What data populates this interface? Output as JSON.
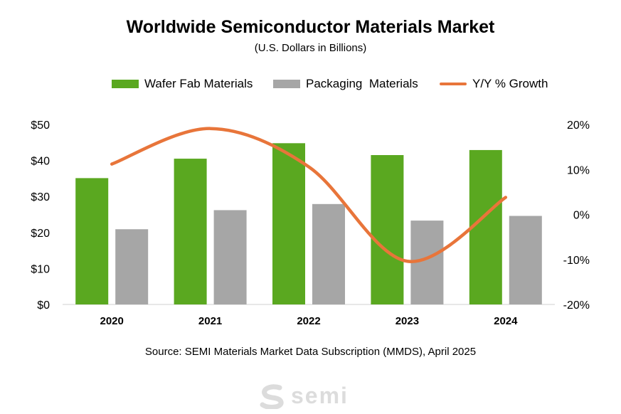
{
  "chart_data": {
    "type": "bar",
    "title": "Worldwide Semiconductor Materials Market",
    "subtitle": "(U.S. Dollars in Billions)",
    "categories": [
      "2020",
      "2021",
      "2022",
      "2023",
      "2024"
    ],
    "series": [
      {
        "name": "Wafer Fab Materials",
        "type": "bar",
        "axis": "left",
        "color": "#5aa820",
        "values": [
          35.1,
          40.5,
          44.8,
          41.5,
          42.9
        ]
      },
      {
        "name": "Packaging  Materials",
        "type": "bar",
        "axis": "left",
        "color": "#a6a6a6",
        "values": [
          20.9,
          26.2,
          27.9,
          23.3,
          24.6
        ]
      },
      {
        "name": "Y/Y % Growth",
        "type": "line",
        "axis": "right",
        "color": "#e8753a",
        "values": [
          11.2,
          19.1,
          10.6,
          -10.4,
          3.8
        ]
      }
    ],
    "y_left": {
      "ylim": [
        0,
        50
      ],
      "ticks": [
        "$0",
        "$10",
        "$20",
        "$30",
        "$40",
        "$50"
      ]
    },
    "y_right": {
      "ylim": [
        -20,
        20
      ],
      "ticks": [
        "-20%",
        "-10%",
        "0%",
        "10%",
        "20%"
      ]
    },
    "legend_position": "top",
    "grid": false
  },
  "source": "Source:  SEMI Materials Market Data Subscription (MMDS), April 2025",
  "logo": {
    "text": "semi",
    "color": "#dcdcdc"
  }
}
